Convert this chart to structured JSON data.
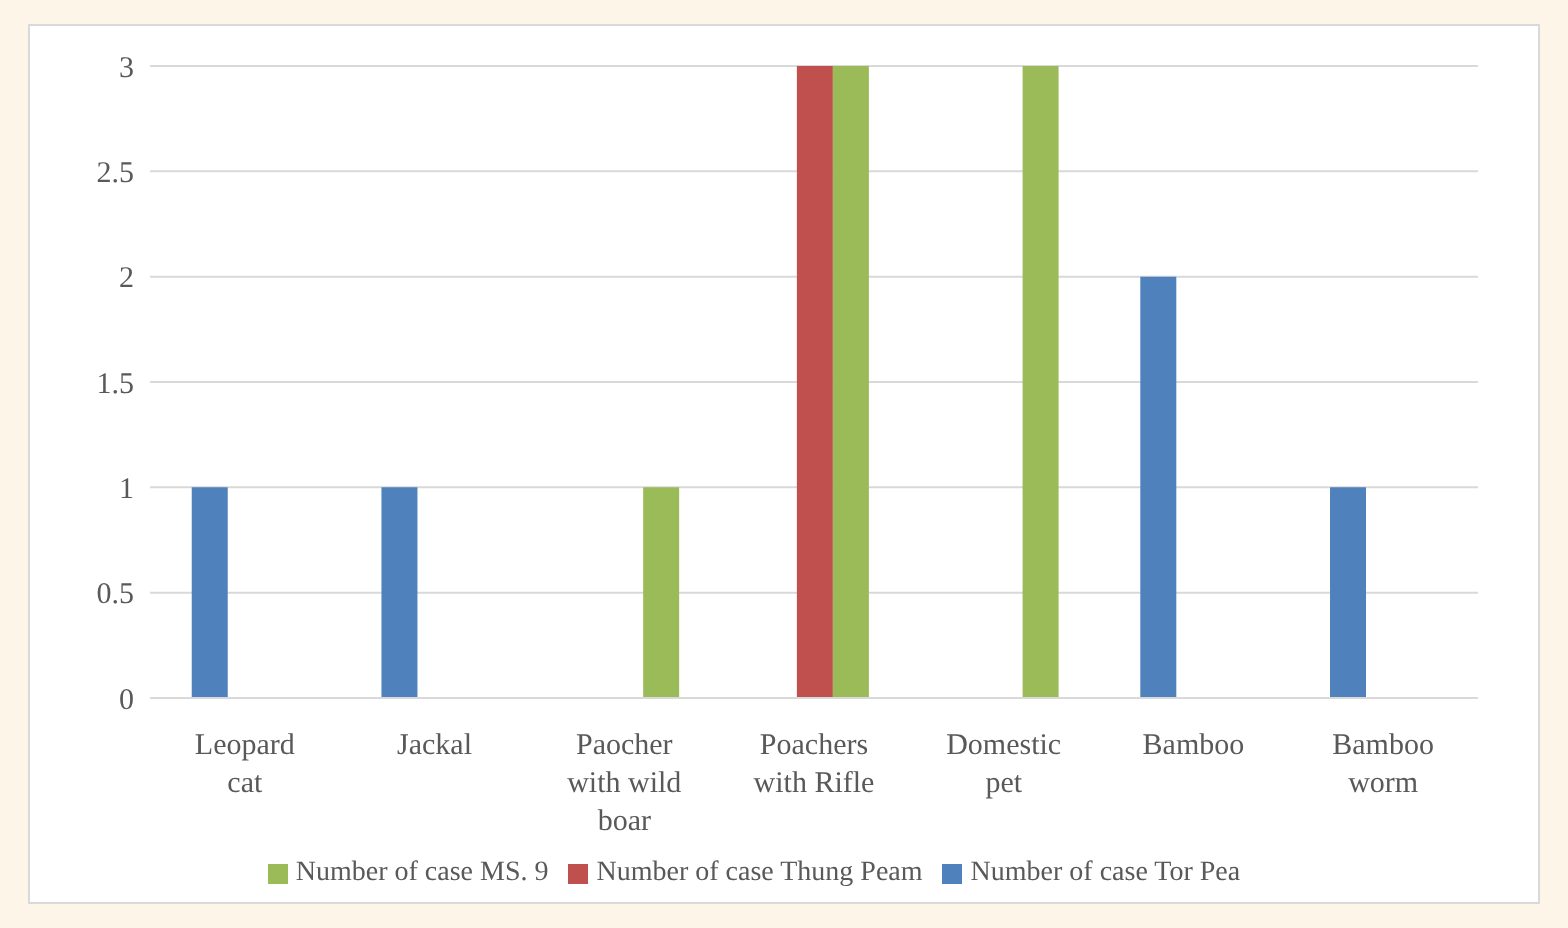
{
  "chart_data": {
    "type": "bar",
    "categories": [
      "Leopard cat",
      "Jackal",
      "Paocher with wild boar",
      "Poachers with Rifle",
      "Domestic pet",
      "Bamboo",
      "Bamboo worm"
    ],
    "series": [
      {
        "name": "Number of case Tor Pea",
        "color": "#4f81bd",
        "values": [
          1,
          1,
          0,
          0,
          0,
          2,
          1
        ]
      },
      {
        "name": "Number of case Thung Peam",
        "color": "#c0504d",
        "values": [
          0,
          0,
          0,
          3,
          0,
          0,
          0
        ]
      },
      {
        "name": "Number of case MS. 9",
        "color": "#9bbb59",
        "values": [
          0,
          0,
          1,
          3,
          3,
          0,
          0
        ]
      }
    ],
    "ylim": [
      0,
      3
    ],
    "yticks": [
      0,
      0.5,
      1,
      1.5,
      2,
      2.5,
      3
    ],
    "grid": "y",
    "legend": "bottom"
  }
}
